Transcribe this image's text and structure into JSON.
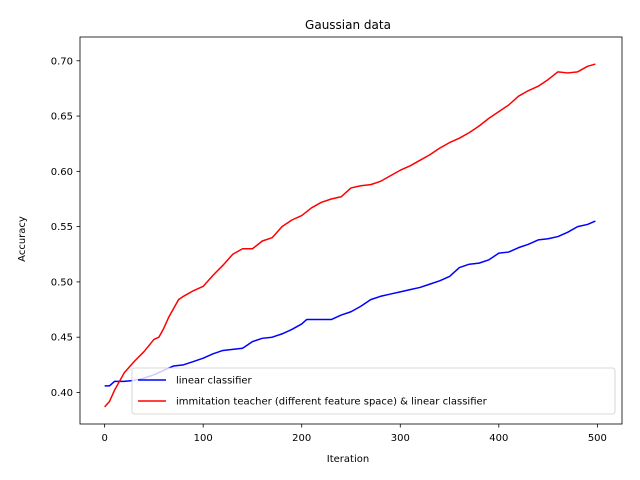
{
  "chart_data": {
    "type": "line",
    "title": "Gaussian data",
    "xlabel": "Iteration",
    "ylabel": "Accuracy",
    "xlim": [
      -25,
      525
    ],
    "ylim": [
      0.3715,
      0.7215
    ],
    "xticks": [
      0,
      100,
      200,
      300,
      400,
      500
    ],
    "yticks": [
      0.4,
      0.45,
      0.5,
      0.55,
      0.6,
      0.65,
      0.7
    ],
    "ytick_labels": [
      "0.40",
      "0.45",
      "0.50",
      "0.55",
      "0.60",
      "0.65",
      "0.70"
    ],
    "grid": false,
    "legend_position": "lower right",
    "series": [
      {
        "name": "linear classifier",
        "color": "#0000ff",
        "x": [
          0,
          5,
          10,
          20,
          30,
          40,
          50,
          60,
          70,
          80,
          90,
          100,
          110,
          120,
          130,
          140,
          150,
          160,
          170,
          180,
          190,
          200,
          205,
          210,
          220,
          230,
          240,
          250,
          260,
          270,
          280,
          290,
          300,
          310,
          320,
          330,
          340,
          350,
          360,
          370,
          380,
          390,
          400,
          410,
          420,
          430,
          440,
          450,
          460,
          470,
          480,
          490,
          498
        ],
        "y": [
          0.406,
          0.406,
          0.41,
          0.41,
          0.411,
          0.413,
          0.416,
          0.42,
          0.424,
          0.425,
          0.428,
          0.431,
          0.435,
          0.438,
          0.439,
          0.44,
          0.446,
          0.449,
          0.45,
          0.453,
          0.457,
          0.462,
          0.466,
          0.466,
          0.466,
          0.466,
          0.47,
          0.473,
          0.478,
          0.484,
          0.487,
          0.489,
          0.491,
          0.493,
          0.495,
          0.498,
          0.501,
          0.505,
          0.513,
          0.516,
          0.517,
          0.52,
          0.526,
          0.527,
          0.531,
          0.534,
          0.538,
          0.539,
          0.541,
          0.545,
          0.55,
          0.552,
          0.555
        ]
      },
      {
        "name": "immitation teacher (different feature space) & linear classifier",
        "color": "#ff0000",
        "x": [
          0,
          5,
          10,
          15,
          20,
          30,
          40,
          50,
          55,
          60,
          65,
          70,
          75,
          80,
          90,
          100,
          110,
          120,
          130,
          140,
          150,
          160,
          170,
          180,
          190,
          200,
          210,
          220,
          230,
          240,
          250,
          260,
          270,
          280,
          290,
          300,
          310,
          320,
          330,
          340,
          350,
          360,
          370,
          380,
          390,
          400,
          410,
          420,
          430,
          440,
          450,
          460,
          470,
          480,
          490,
          498
        ],
        "y": [
          0.387,
          0.392,
          0.402,
          0.41,
          0.418,
          0.428,
          0.437,
          0.448,
          0.45,
          0.458,
          0.468,
          0.476,
          0.484,
          0.487,
          0.492,
          0.496,
          0.506,
          0.515,
          0.525,
          0.53,
          0.53,
          0.537,
          0.54,
          0.55,
          0.556,
          0.56,
          0.567,
          0.572,
          0.575,
          0.577,
          0.585,
          0.587,
          0.588,
          0.591,
          0.596,
          0.601,
          0.605,
          0.61,
          0.615,
          0.621,
          0.626,
          0.63,
          0.635,
          0.641,
          0.648,
          0.654,
          0.66,
          0.668,
          0.673,
          0.677,
          0.683,
          0.69,
          0.689,
          0.69,
          0.695,
          0.697
        ]
      }
    ]
  }
}
